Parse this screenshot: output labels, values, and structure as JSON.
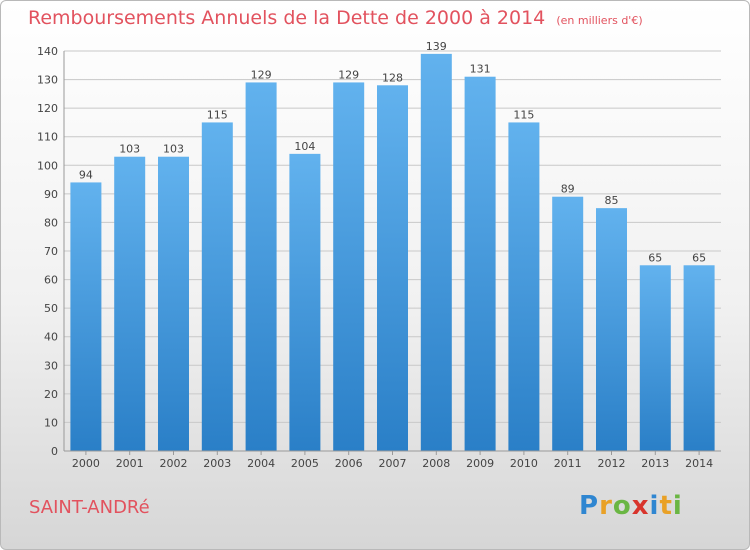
{
  "title": "Remboursements Annuels de la Dette de 2000 à 2014",
  "subtitle": "(en milliers d'€)",
  "city": "SAINT-ANDRé",
  "brand": {
    "letters": [
      "P",
      "r",
      "o",
      "x",
      "i",
      "t",
      "i"
    ],
    "colors": [
      "#2f86d1",
      "#e9a126",
      "#6ab643",
      "#d8342c",
      "#2f86d1",
      "#e9a126",
      "#6ab643"
    ]
  },
  "colors": {
    "bar_top": "#62b2ee",
    "bar_bottom": "#2a7fc7",
    "grid": "#c8c8c8",
    "text": "#444444"
  },
  "chart_data": {
    "type": "bar",
    "categories": [
      "2000",
      "2001",
      "2002",
      "2003",
      "2004",
      "2005",
      "2006",
      "2007",
      "2008",
      "2009",
      "2010",
      "2011",
      "2012",
      "2013",
      "2014"
    ],
    "values": [
      94,
      103,
      103,
      115,
      129,
      104,
      129,
      128,
      139,
      131,
      115,
      89,
      85,
      65,
      65
    ],
    "title": "Remboursements Annuels de la Dette de 2000 à 2014",
    "xlabel": "",
    "ylabel": "",
    "ylim": [
      0,
      140
    ],
    "yticks": [
      0,
      10,
      20,
      30,
      40,
      50,
      60,
      70,
      80,
      90,
      100,
      110,
      120,
      130,
      140
    ],
    "grid": true,
    "data_labels": true
  }
}
